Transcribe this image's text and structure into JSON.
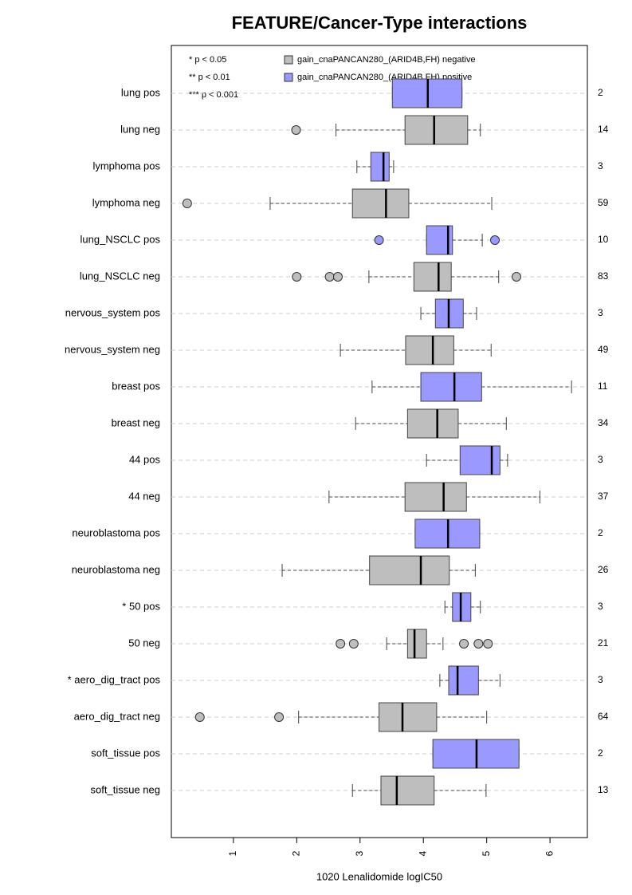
{
  "chart_data": {
    "type": "boxplot",
    "title": "FEATURE/Cancer-Type interactions",
    "x_label": "1020 Lenalidomide logIC50",
    "xlim": [
      0.02,
      6.59
    ],
    "xticks": [
      1,
      2,
      3,
      4,
      5,
      6
    ],
    "notes": [
      "* p < 0.05",
      "** p < 0.01",
      "*** p < 0.001"
    ],
    "legend": [
      {
        "label": "gain_cnaPANCAN280_(ARID4B,FH) negative",
        "color": "#bebebe"
      },
      {
        "label": "gain_cnaPANCAN280_(ARID4B,FH) positive",
        "color": "#9999ff"
      }
    ],
    "categories": [
      "lung pos",
      "lung neg",
      "lymphoma pos",
      "lymphoma neg",
      "lung_NSCLC pos",
      "lung_NSCLC neg",
      "nervous_system pos",
      "nervous_system neg",
      "breast pos",
      "breast neg",
      "44 pos",
      "44 neg",
      "neuroblastoma pos",
      "neuroblastoma neg",
      "* 50 pos",
      "50 neg",
      "* aero_dig_tract pos",
      "aero_dig_tract neg",
      "soft_tissue pos",
      "soft_tissue neg"
    ],
    "boxes": [
      {
        "color": "#9999ff",
        "whisker_low": 3.51,
        "q1": 3.51,
        "median": 4.07,
        "q3": 4.61,
        "whisker_high": 4.61,
        "outliers": [],
        "n": 2
      },
      {
        "color": "#bebebe",
        "whisker_low": 2.62,
        "q1": 3.71,
        "median": 4.17,
        "q3": 4.7,
        "whisker_high": 4.9,
        "outliers": [
          1.99
        ],
        "n": 14
      },
      {
        "color": "#9999ff",
        "whisker_low": 2.95,
        "q1": 3.17,
        "median": 3.37,
        "q3": 3.46,
        "whisker_high": 3.53,
        "outliers": [],
        "n": 3
      },
      {
        "color": "#bebebe",
        "whisker_low": 1.58,
        "q1": 2.88,
        "median": 3.41,
        "q3": 3.77,
        "whisker_high": 5.08,
        "outliers": [
          0.27
        ],
        "n": 59
      },
      {
        "color": "#9999ff",
        "whisker_low": 4.05,
        "q1": 4.05,
        "median": 4.39,
        "q3": 4.46,
        "whisker_high": 4.93,
        "outliers": [
          3.3,
          5.13
        ],
        "n": 10
      },
      {
        "color": "#bebebe",
        "whisker_low": 3.14,
        "q1": 3.85,
        "median": 4.24,
        "q3": 4.44,
        "whisker_high": 5.19,
        "outliers": [
          2.0,
          2.52,
          2.65,
          5.47
        ],
        "n": 83
      },
      {
        "color": "#9999ff",
        "whisker_low": 3.96,
        "q1": 4.19,
        "median": 4.4,
        "q3": 4.63,
        "whisker_high": 4.84,
        "outliers": [],
        "n": 3
      },
      {
        "color": "#bebebe",
        "whisker_low": 2.69,
        "q1": 3.72,
        "median": 4.15,
        "q3": 4.48,
        "whisker_high": 5.07,
        "outliers": [],
        "n": 49
      },
      {
        "color": "#9999ff",
        "whisker_low": 3.19,
        "q1": 3.96,
        "median": 4.49,
        "q3": 4.92,
        "whisker_high": 6.34,
        "outliers": [],
        "n": 11
      },
      {
        "color": "#bebebe",
        "whisker_low": 2.93,
        "q1": 3.75,
        "median": 4.22,
        "q3": 4.55,
        "whisker_high": 5.31,
        "outliers": [],
        "n": 34
      },
      {
        "color": "#9999ff",
        "whisker_low": 4.05,
        "q1": 4.58,
        "median": 5.08,
        "q3": 5.21,
        "whisker_high": 5.33,
        "outliers": [],
        "n": 3
      },
      {
        "color": "#bebebe",
        "whisker_low": 2.51,
        "q1": 3.71,
        "median": 4.32,
        "q3": 4.68,
        "whisker_high": 5.84,
        "outliers": [],
        "n": 37
      },
      {
        "color": "#9999ff",
        "whisker_low": 3.87,
        "q1": 3.87,
        "median": 4.39,
        "q3": 4.89,
        "whisker_high": 4.89,
        "outliers": [],
        "n": 2
      },
      {
        "color": "#bebebe",
        "whisker_low": 1.77,
        "q1": 3.15,
        "median": 3.96,
        "q3": 4.41,
        "whisker_high": 4.82,
        "outliers": [],
        "n": 26
      },
      {
        "color": "#9999ff",
        "whisker_low": 4.34,
        "q1": 4.46,
        "median": 4.59,
        "q3": 4.75,
        "whisker_high": 4.9,
        "outliers": [],
        "n": 3
      },
      {
        "color": "#bebebe",
        "whisker_low": 3.42,
        "q1": 3.75,
        "median": 3.86,
        "q3": 4.05,
        "whisker_high": 4.31,
        "outliers": [
          2.69,
          2.9,
          4.64,
          4.87,
          5.02
        ],
        "n": 21
      },
      {
        "color": "#9999ff",
        "whisker_low": 4.26,
        "q1": 4.4,
        "median": 4.54,
        "q3": 4.87,
        "whisker_high": 5.21,
        "outliers": [],
        "n": 3
      },
      {
        "color": "#bebebe",
        "whisker_low": 2.03,
        "q1": 3.3,
        "median": 3.67,
        "q3": 4.21,
        "whisker_high": 5.0,
        "outliers": [
          0.47,
          1.72
        ],
        "n": 64
      },
      {
        "color": "#9999ff",
        "whisker_low": 4.15,
        "q1": 4.15,
        "median": 4.84,
        "q3": 5.51,
        "whisker_high": 5.51,
        "outliers": [],
        "n": 2
      },
      {
        "color": "#bebebe",
        "whisker_low": 2.88,
        "q1": 3.33,
        "median": 3.58,
        "q3": 4.17,
        "whisker_high": 4.99,
        "outliers": [],
        "n": 13
      }
    ]
  }
}
